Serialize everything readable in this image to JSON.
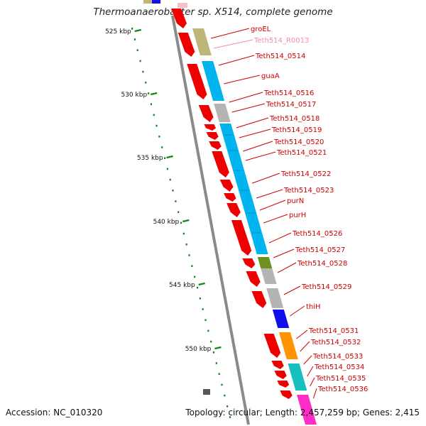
{
  "title": "Thermoanaerobacter sp. X514, complete genome",
  "accession": "Accession: NC_010320",
  "topology": "Topology: circular; Length: 2,457,259 bp; Genes: 2,415",
  "colors": {
    "backbone": "#8a8a8a",
    "cds_forward": "#ee0000",
    "label_text": "#cc0000",
    "rna_label_text": "#f28bbd",
    "tick": "#118811",
    "tan": "#bdb57a",
    "cyan": "#00b4f0",
    "grey": "#b4b4b4",
    "olive": "#6f8f1e",
    "blue": "#1010ee",
    "orange": "#ff9400",
    "teal": "#16c0c0",
    "magenta": "#ff2cc6"
  },
  "ruler": [
    {
      "label": "525 kbp"
    },
    {
      "label": "530 kbp"
    },
    {
      "label": "535 kbp"
    },
    {
      "label": "540 kbp"
    },
    {
      "label": "545 kbp"
    },
    {
      "label": "550 kbp"
    }
  ],
  "genes": [
    {
      "name": "groEL",
      "type": "cds"
    },
    {
      "name": "Teth514_R0013",
      "type": "rna"
    },
    {
      "name": "Teth514_0514",
      "type": "cds"
    },
    {
      "name": "guaA",
      "type": "cds"
    },
    {
      "name": "Teth514_0516",
      "type": "cds"
    },
    {
      "name": "Teth514_0517",
      "type": "cds"
    },
    {
      "name": "Teth514_0518",
      "type": "cds"
    },
    {
      "name": "Teth514_0519",
      "type": "cds"
    },
    {
      "name": "Teth514_0520",
      "type": "cds"
    },
    {
      "name": "Teth514_0521",
      "type": "cds"
    },
    {
      "name": "Teth514_0522",
      "type": "cds"
    },
    {
      "name": "Teth514_0523",
      "type": "cds"
    },
    {
      "name": "purN",
      "type": "cds"
    },
    {
      "name": "purH",
      "type": "cds"
    },
    {
      "name": "Teth514_0526",
      "type": "cds"
    },
    {
      "name": "Teth514_0527",
      "type": "cds"
    },
    {
      "name": "Teth514_0528",
      "type": "cds"
    },
    {
      "name": "Teth514_0529",
      "type": "cds"
    },
    {
      "name": "thiH",
      "type": "cds"
    },
    {
      "name": "Teth514_0531",
      "type": "cds"
    },
    {
      "name": "Teth514_0532",
      "type": "cds"
    },
    {
      "name": "Teth514_0533",
      "type": "cds"
    },
    {
      "name": "Teth514_0534",
      "type": "cds"
    },
    {
      "name": "Teth514_0535",
      "type": "cds"
    },
    {
      "name": "Teth514_0536",
      "type": "cds"
    }
  ],
  "cog_segments": [
    {
      "color": "tan"
    },
    {
      "color": "cyan"
    },
    {
      "color": "grey"
    },
    {
      "color": "cyan"
    },
    {
      "color": "olive"
    },
    {
      "color": "grey"
    },
    {
      "color": "grey"
    },
    {
      "color": "blue"
    },
    {
      "color": "orange"
    },
    {
      "color": "teal"
    },
    {
      "color": "magenta"
    }
  ]
}
